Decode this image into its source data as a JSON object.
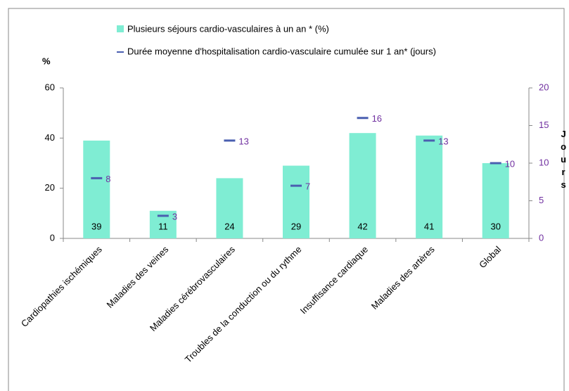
{
  "chart_data": {
    "type": "bar_line",
    "categories": [
      "Cardiopathies ischémiques",
      "Maladies des veines",
      "Maladies cérébrovasculaires",
      "Troubles de la conduction ou du rythme",
      "Insuffisance cardiaque",
      "Maladies des artères",
      "Global"
    ],
    "series": [
      {
        "name": "Plusieurs séjours cardio-vasculaires à un an * (%)",
        "color": "#7fedd3",
        "values": [
          39,
          11,
          24,
          29,
          42,
          41,
          30
        ]
      },
      {
        "name": "Durée moyenne d'hospitalisation cardio-vasculaire cumulée sur 1 an*  (jours)",
        "color": "#4a5fb0",
        "axis": "y2",
        "values": [
          8,
          3,
          13,
          7,
          16,
          13,
          10
        ]
      }
    ],
    "y_label": "%",
    "y2_label": "Jours",
    "ylim": [
      0,
      60
    ],
    "yticks": [
      0,
      20,
      40,
      60
    ],
    "y2lim": [
      0,
      20
    ],
    "y2ticks": [
      0,
      5,
      10,
      15,
      20
    ]
  }
}
